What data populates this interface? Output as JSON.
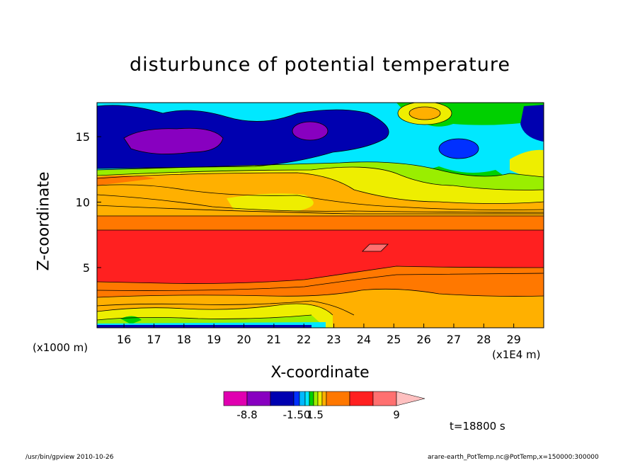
{
  "chart_data": {
    "type": "heatmap",
    "title": "disturbunce of potential temperature",
    "xlabel": "X-coordinate",
    "ylabel": "Z-coordinate",
    "x_unit_left": "(x1000 m)",
    "x_unit_right": "(x1E4 m)",
    "x_ticks": [
      "16",
      "17",
      "18",
      "19",
      "20",
      "21",
      "22",
      "23",
      "24",
      "25",
      "26",
      "27",
      "28",
      "29"
    ],
    "y_ticks": [
      "5",
      "10",
      "15"
    ],
    "xlim": [
      15.1,
      30.0
    ],
    "ylim": [
      0.4,
      17.6
    ],
    "colorbar": {
      "labels": [
        "-8.8",
        "-1.50",
        "1.5",
        "9"
      ],
      "colors": [
        "#e000b0",
        "#8800c0",
        "#0000b0",
        "#0030ff",
        "#00b8ff",
        "#00e8ff",
        "#00d000",
        "#9aee00",
        "#eeee00",
        "#ffb000",
        "#ff7800",
        "#ff2020",
        "#ff7070",
        "#ffc0c0"
      ]
    },
    "time_label": "t=18800 s",
    "footer_left": "/usr/bin/gpview  2010-10-26",
    "footer_right": "arare-earth_PotTemp.nc@PotTemp,x=150000:300000"
  }
}
